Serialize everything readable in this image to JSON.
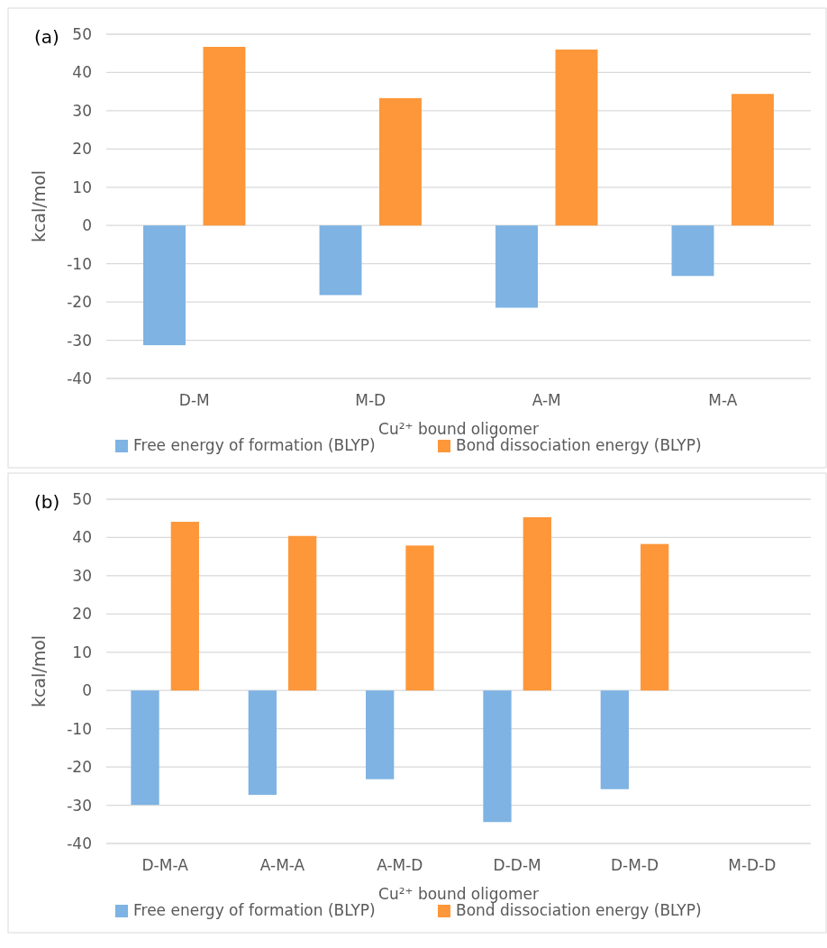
{
  "chart_data": [
    {
      "type": "bar",
      "title": "(a)",
      "xlabel": "Cu²⁺ bound oligomer",
      "ylabel": "kcal/mol",
      "categories": [
        "D-M",
        "M-D",
        "A-M",
        "M-A"
      ],
      "series": [
        {
          "name": "Free energy of formation (BLYP)",
          "color": "#7eb3e3",
          "values": [
            -31.3,
            -18.2,
            -21.5,
            -13.2
          ]
        },
        {
          "name": "Bond dissociation energy (BLYP)",
          "color": "#fd973a",
          "values": [
            46.7,
            33.3,
            46.0,
            34.4
          ]
        }
      ],
      "ylim": [
        -40,
        50
      ],
      "yticks": [
        -40,
        -30,
        -20,
        -10,
        0,
        10,
        20,
        30,
        40,
        50
      ],
      "grid": "y",
      "legend": "bottom"
    },
    {
      "type": "bar",
      "title": "(b)",
      "xlabel": "Cu²⁺ bound oligomer",
      "ylabel": "kcal/mol",
      "categories": [
        "D-M-A",
        "A-M-A",
        "A-M-D",
        "D-D-M",
        "D-M-D",
        "M-D-D"
      ],
      "series": [
        {
          "name": "Free energy of formation (BLYP)",
          "color": "#7eb3e3",
          "values": [
            -29.9,
            -27.3,
            -23.2,
            -34.4,
            -25.8,
            null
          ]
        },
        {
          "name": "Bond dissociation energy (BLYP)",
          "color": "#fd973a",
          "values": [
            44.1,
            40.4,
            37.9,
            45.3,
            38.3,
            null
          ]
        }
      ],
      "ylim": [
        -40,
        50
      ],
      "yticks": [
        -40,
        -30,
        -20,
        -10,
        0,
        10,
        20,
        30,
        40,
        50
      ],
      "grid": "y",
      "legend": "bottom"
    }
  ]
}
